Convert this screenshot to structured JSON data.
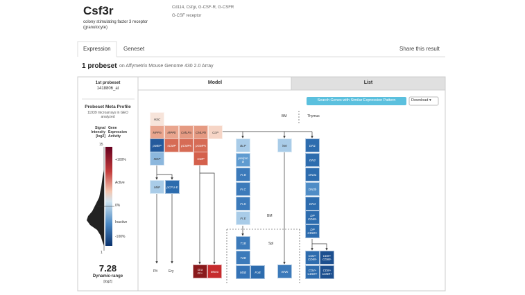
{
  "header": {
    "gene": "Csf3r",
    "description": "colony stimulating factor 3 receptor (granulocyte)",
    "aliases": "Cd114, Csfgr, G-CSF-R, G-CSFR",
    "full_name": "G-CSF receptor"
  },
  "tabs": [
    "Expression",
    "Geneset"
  ],
  "share": "Share this result",
  "summary": {
    "count": "1 probeset",
    "platform": "on Affymetrix Mouse Genome 430 2.0 Array"
  },
  "sidebar": {
    "probeset_title": "1st probeset",
    "probeset_id": "1418806_at",
    "profile_title": "Probeset Meta Profile",
    "profile_note": "11939 microarrays in GEO analyzed",
    "signal_header": "Signal Intensity [log2]",
    "activity_header": "Gene Expression Activity",
    "scale_top": 15,
    "scale_bottom": 1,
    "activity_labels": [
      "+100%",
      "Active",
      "0%",
      "Inactive",
      "-100%"
    ],
    "dynamic_range": 7.28,
    "dynamic_range_label": "Dynamic-range",
    "dynamic_range_unit": "[log2]"
  },
  "view_tabs": [
    "Model",
    "List"
  ],
  "search_button": "Search Genes with Similar Expression Pattern",
  "download": "Download",
  "regions": [
    "BM",
    "Thymus",
    "BM",
    "Spl"
  ],
  "nodes": [
    {
      "label": [
        "HSC"
      ],
      "color": "#f7e4da"
    },
    {
      "label": [
        "MPPa"
      ],
      "color": "#e9a58e"
    },
    {
      "label": [
        "MPPb"
      ],
      "color": "#e9a58e"
    },
    {
      "label": [
        "CMLPa"
      ],
      "color": "#e59a82"
    },
    {
      "label": [
        "CMLPb"
      ],
      "color": "#e59a82"
    },
    {
      "label": [
        "CLP"
      ],
      "color": "#f6d5c6"
    },
    {
      "label": [
        "pMEP"
      ],
      "color": "#245a9c"
    },
    {
      "label": [
        "sCMP"
      ],
      "color": "#d66b55"
    },
    {
      "label": [
        "pCMPs"
      ],
      "color": "#d66b55"
    },
    {
      "label": [
        "pGMPs"
      ],
      "color": "#d66b55"
    },
    {
      "label": [
        "MEP"
      ],
      "color": "#8cb7dd"
    },
    {
      "label": [
        "GMP"
      ],
      "color": "#d4604c"
    },
    {
      "label": [
        "MkP"
      ],
      "color": "#a9cce8"
    },
    {
      "label": [
        "pCFU-E"
      ],
      "color": "#2d6cae"
    },
    {
      "label": [
        "Gra",
        "Gr+"
      ],
      "color": "#8a1a1c"
    },
    {
      "label": [
        "Mono"
      ],
      "color": "#c62b2d"
    },
    {
      "label": [
        "BLP"
      ],
      "color": "#a9cce8"
    },
    {
      "label": [
        "pre/pro",
        "B"
      ],
      "color": "#5f9bd0"
    },
    {
      "label": [
        "Fr.B"
      ],
      "color": "#3c7aba"
    },
    {
      "label": [
        "Fr.C"
      ],
      "color": "#3c7aba"
    },
    {
      "label": [
        "Fr.D"
      ],
      "color": "#3c7aba"
    },
    {
      "label": [
        "Fr.E"
      ],
      "color": "#a9cce8"
    },
    {
      "label": [
        "T1B"
      ],
      "color": "#3c7aba"
    },
    {
      "label": [
        "T2B"
      ],
      "color": "#3c7aba"
    },
    {
      "label": [
        "MzB"
      ],
      "color": "#3573b6"
    },
    {
      "label": [
        "FoB"
      ],
      "color": "#2d6cae"
    },
    {
      "label": [
        "iNK"
      ],
      "color": "#a9cce8"
    },
    {
      "label": [
        "mNK"
      ],
      "color": "#3c7aba"
    },
    {
      "label": [
        "DN1"
      ],
      "color": "#2d6cae"
    },
    {
      "label": [
        "DN2"
      ],
      "color": "#2d6cae"
    },
    {
      "label": [
        "DN3a"
      ],
      "color": "#2d6cae"
    },
    {
      "label": [
        "DN3b"
      ],
      "color": "#4f8cc6"
    },
    {
      "label": [
        "DN4"
      ],
      "color": "#2d6cae"
    },
    {
      "label": [
        "DP",
        "CD69-"
      ],
      "color": "#2d6cae"
    },
    {
      "label": [
        "DP",
        "CD69+"
      ],
      "color": "#2d6cae"
    },
    {
      "label": [
        "CD4+",
        "CD69-"
      ],
      "color": "#2d6cae"
    },
    {
      "label": [
        "CD8+",
        "CD69-"
      ],
      "color": "#1c4f8f"
    },
    {
      "label": [
        "CD4+",
        "CD69+"
      ],
      "color": "#2d6cae"
    },
    {
      "label": [
        "CD8+",
        "CD69+"
      ],
      "color": "#1c4f8f"
    }
  ],
  "outputs": [
    "Plt",
    "Ery"
  ]
}
